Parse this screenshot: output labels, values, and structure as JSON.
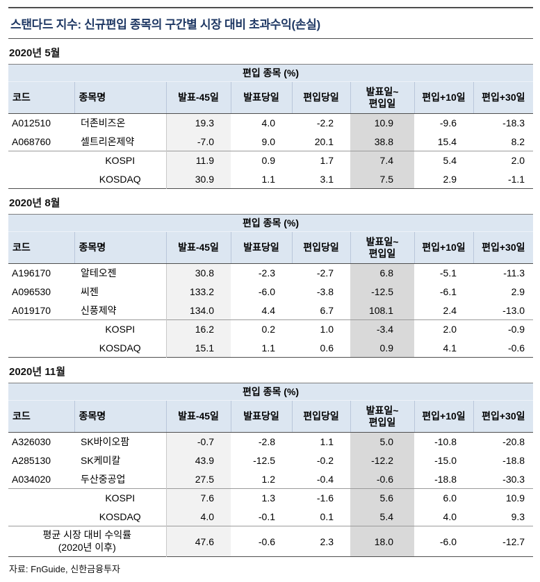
{
  "title": "스탠다드 지수: 신규편입 종목의 구간별 시장 대비 초과수익(손실)",
  "source_note": "자료: FnGuide, 신한금융투자",
  "colors": {
    "header_bg": "#dce6f1",
    "shade_light": "#f2f2f2",
    "shade_dark": "#d9d9d9",
    "title_color": "#1f3864"
  },
  "group_header": "편입 종목 (%)",
  "columns": [
    "코드",
    "종목명",
    "발표-45일",
    "발표당일",
    "편입당일",
    "발표일~\n편입일",
    "편입+10일",
    "편입+30일"
  ],
  "tables": [
    {
      "section": "2020년 5월",
      "stock_rows": [
        {
          "code": "A012510",
          "name": "더존비즈온",
          "values": [
            "19.3",
            "4.0",
            "-2.2",
            "10.9",
            "-9.6",
            "-18.3"
          ]
        },
        {
          "code": "A068760",
          "name": "셀트리온제약",
          "values": [
            "-7.0",
            "9.0",
            "20.1",
            "38.8",
            "15.4",
            "8.2"
          ]
        }
      ],
      "index_rows": [
        {
          "name": "KOSPI",
          "values": [
            "11.9",
            "0.9",
            "1.7",
            "7.4",
            "5.4",
            "2.0"
          ]
        },
        {
          "name": "KOSDAQ",
          "values": [
            "30.9",
            "1.1",
            "3.1",
            "7.5",
            "2.9",
            "-1.1"
          ]
        }
      ]
    },
    {
      "section": "2020년 8월",
      "stock_rows": [
        {
          "code": "A196170",
          "name": "알테오젠",
          "values": [
            "30.8",
            "-2.3",
            "-2.7",
            "6.8",
            "-5.1",
            "-11.3"
          ]
        },
        {
          "code": "A096530",
          "name": "씨젠",
          "values": [
            "133.2",
            "-6.0",
            "-3.8",
            "-12.5",
            "-6.1",
            "2.9"
          ]
        },
        {
          "code": "A019170",
          "name": "신풍제약",
          "values": [
            "134.0",
            "4.4",
            "6.7",
            "108.1",
            "2.4",
            "-13.0"
          ]
        }
      ],
      "index_rows": [
        {
          "name": "KOSPI",
          "values": [
            "16.2",
            "0.2",
            "1.0",
            "-3.4",
            "2.0",
            "-0.9"
          ]
        },
        {
          "name": "KOSDAQ",
          "values": [
            "15.1",
            "1.1",
            "0.6",
            "0.9",
            "4.1",
            "-0.6"
          ]
        }
      ]
    },
    {
      "section": "2020년 11월",
      "stock_rows": [
        {
          "code": "A326030",
          "name": "SK바이오팜",
          "values": [
            "-0.7",
            "-2.8",
            "1.1",
            "5.0",
            "-10.8",
            "-20.8"
          ]
        },
        {
          "code": "A285130",
          "name": "SK케미칼",
          "values": [
            "43.9",
            "-12.5",
            "-0.2",
            "-12.2",
            "-15.0",
            "-18.8"
          ]
        },
        {
          "code": "A034020",
          "name": "두산중공업",
          "values": [
            "27.5",
            "1.2",
            "-0.4",
            "-0.6",
            "-18.8",
            "-30.3"
          ]
        }
      ],
      "index_rows": [
        {
          "name": "KOSPI",
          "values": [
            "7.6",
            "1.3",
            "-1.6",
            "5.6",
            "6.0",
            "10.9"
          ]
        },
        {
          "name": "KOSDAQ",
          "values": [
            "4.0",
            "-0.1",
            "0.1",
            "5.4",
            "4.0",
            "9.3"
          ]
        }
      ],
      "summary_row": {
        "label": "평균 시장 대비 수익률\n(2020년 이후)",
        "values": [
          "47.6",
          "-0.6",
          "2.3",
          "18.0",
          "-6.0",
          "-12.7"
        ]
      }
    }
  ]
}
